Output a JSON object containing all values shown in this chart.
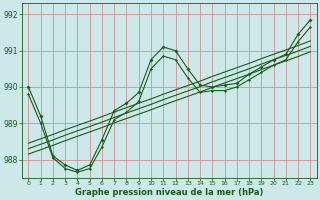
{
  "title": "Graphe pression niveau de la mer (hPa)",
  "bg_color": "#cce8e8",
  "grid_color": "#d09090",
  "line_color": "#1a5c1a",
  "xlim": [
    -0.5,
    23.5
  ],
  "ylim": [
    987.5,
    992.3
  ],
  "yticks": [
    988,
    989,
    990,
    991,
    992
  ],
  "xtick_labels": [
    "0",
    "1",
    "2",
    "3",
    "4",
    "5",
    "6",
    "7",
    "8",
    "9",
    "10",
    "11",
    "12",
    "13",
    "14",
    "15",
    "16",
    "17",
    "18",
    "19",
    "20",
    "21",
    "22",
    "23"
  ],
  "main_data": [
    990.0,
    989.2,
    988.1,
    987.85,
    987.7,
    987.85,
    988.55,
    989.35,
    989.55,
    989.85,
    990.75,
    991.1,
    991.0,
    990.5,
    990.05,
    990.0,
    990.05,
    990.1,
    990.35,
    990.55,
    990.75,
    990.9,
    991.45,
    991.85
  ],
  "line2_data": [
    989.8,
    989.0,
    988.05,
    987.75,
    987.65,
    987.75,
    988.35,
    989.1,
    989.3,
    989.6,
    990.5,
    990.85,
    990.75,
    990.25,
    989.85,
    989.9,
    989.9,
    990.0,
    990.2,
    990.4,
    990.6,
    990.75,
    991.25,
    991.65
  ],
  "trend1_data": [
    988.15,
    988.27,
    988.39,
    988.52,
    988.64,
    988.76,
    988.88,
    989.01,
    989.13,
    989.25,
    989.37,
    989.5,
    989.62,
    989.74,
    989.86,
    989.99,
    990.11,
    990.23,
    990.35,
    990.48,
    990.6,
    990.72,
    990.84,
    990.97
  ],
  "trend2_data": [
    988.3,
    988.42,
    988.54,
    988.67,
    988.79,
    988.91,
    989.03,
    989.16,
    989.28,
    989.4,
    989.52,
    989.65,
    989.77,
    989.89,
    990.01,
    990.14,
    990.26,
    990.38,
    990.5,
    990.63,
    990.75,
    990.87,
    990.99,
    991.12
  ],
  "trend3_data": [
    988.45,
    988.57,
    988.69,
    988.82,
    988.94,
    989.06,
    989.18,
    989.31,
    989.43,
    989.55,
    989.67,
    989.8,
    989.92,
    990.04,
    990.16,
    990.29,
    990.41,
    990.53,
    990.65,
    990.78,
    990.9,
    991.02,
    991.14,
    991.27
  ]
}
